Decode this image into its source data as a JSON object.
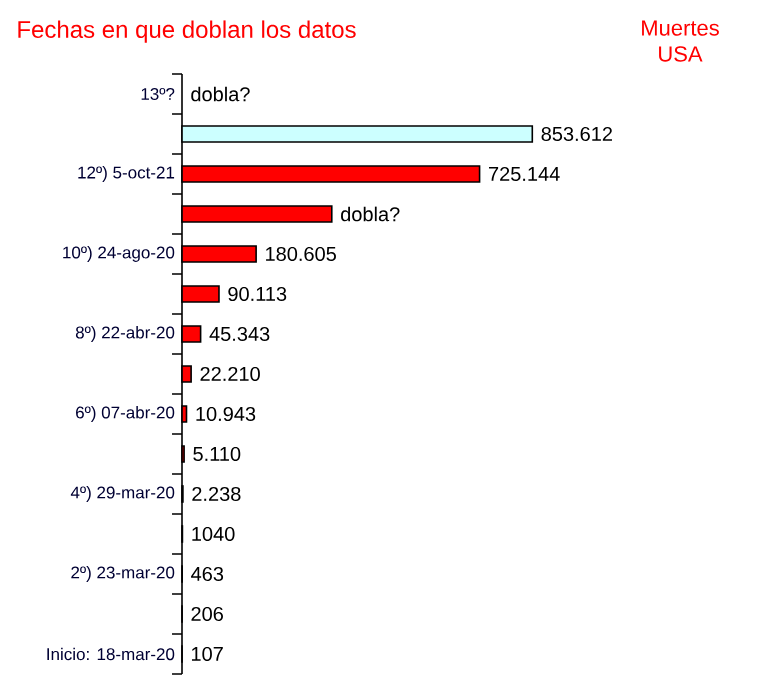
{
  "chart_data": {
    "type": "bar",
    "orientation": "horizontal",
    "title": "Fechas en que doblan los datos",
    "subtitle": "Muertes USA",
    "categories": [
      "13º?",
      null,
      "12º) 5-oct-21",
      null,
      "10º) 24-ago-20",
      null,
      "8º) 22-abr-20",
      null,
      "6º) 07-abr-20",
      null,
      "4º) 29-mar-20",
      null,
      "2º) 23-mar-20",
      null,
      "Inicio: 18-mar-20"
    ],
    "values": [
      null,
      853612,
      725144,
      365000,
      180605,
      90113,
      45343,
      22210,
      10943,
      5110,
      2238,
      1040,
      463,
      206,
      107
    ],
    "value_labels": [
      "dobla?",
      "853.612",
      "725.144",
      "dobla?",
      "180.605",
      "90.113",
      "45.343",
      "22.210",
      "10.943",
      "5.110",
      "2.238",
      "1040",
      "463",
      "206",
      "107"
    ],
    "colors": [
      "#ff0000",
      "#ccffff",
      "#ff0000",
      "#ff0000",
      "#ff0000",
      "#ff0000",
      "#ff0000",
      "#ff0000",
      "#ff0000",
      "#ff0000",
      "#ff0000",
      "#ff0000",
      "#ff0000",
      "#ff0000",
      "#ff0000"
    ]
  }
}
